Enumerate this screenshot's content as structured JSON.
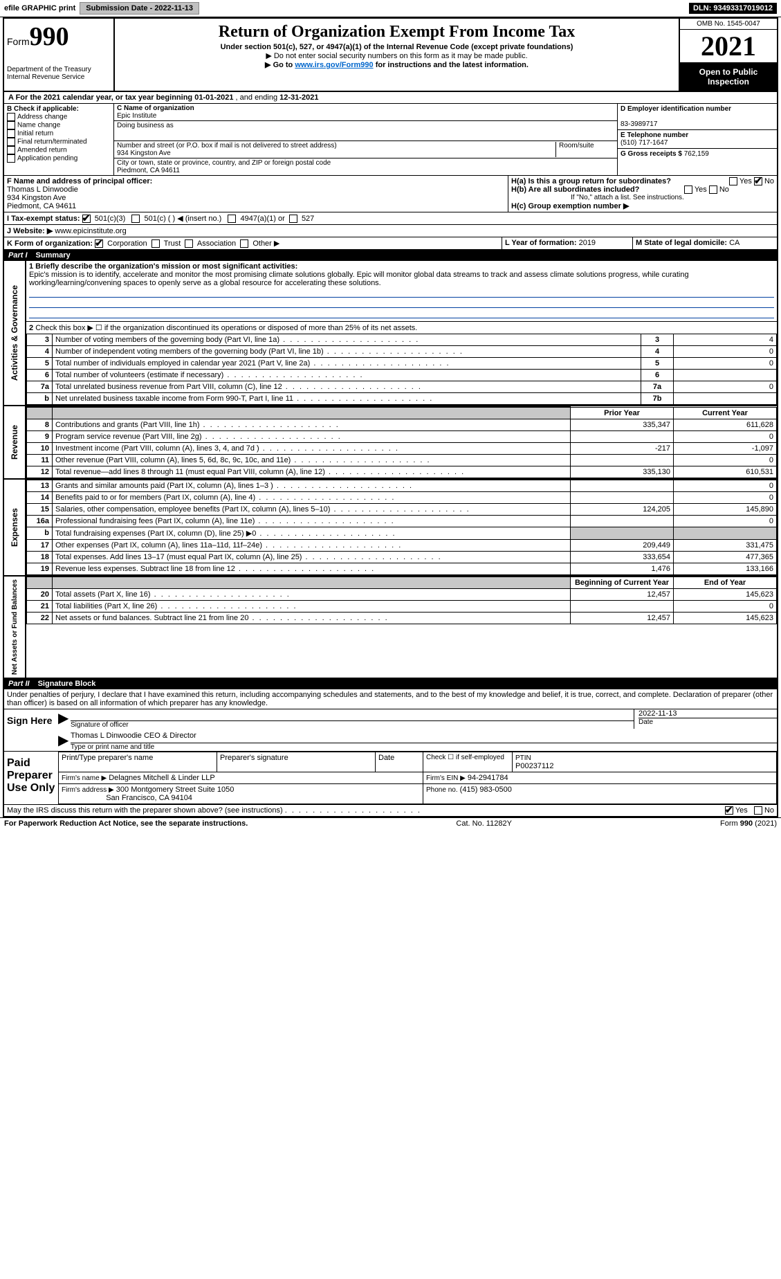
{
  "colors": {
    "black": "#000000",
    "white": "#ffffff",
    "grey_cell": "#c8c8c8",
    "link": "#0066cc",
    "underline_color": "#0040a0"
  },
  "topbar": {
    "efile_label": "efile GRAPHIC print",
    "submission_label": "Submission Date - 2022-11-13",
    "dln": "DLN: 93493317019012"
  },
  "header": {
    "form_label": "Form",
    "form_number": "990",
    "dept": "Department of the Treasury",
    "irs": "Internal Revenue Service",
    "title": "Return of Organization Exempt From Income Tax",
    "subtitle": "Under section 501(c), 527, or 4947(a)(1) of the Internal Revenue Code (except private foundations)",
    "note1": "▶ Do not enter social security numbers on this form as it may be made public.",
    "note2_pre": "▶ Go to ",
    "note2_link": "www.irs.gov/Form990",
    "note2_post": " for instructions and the latest information.",
    "omb": "OMB No. 1545-0047",
    "year": "2021",
    "open_pub": "Open to Public Inspection"
  },
  "lineA": {
    "text_pre": "A For the 2021 calendar year, or tax year beginning ",
    "begin": "01-01-2021",
    "mid": "   , and ending ",
    "end": "12-31-2021"
  },
  "boxB": {
    "label": "B Check if applicable:",
    "opts": [
      "Address change",
      "Name change",
      "Initial return",
      "Final return/terminated",
      "Amended return",
      "Application pending"
    ]
  },
  "boxC": {
    "name_label": "C Name of organization",
    "name": "Epic Institute",
    "dba_label": "Doing business as",
    "addr_label": "Number and street (or P.O. box if mail is not delivered to street address)",
    "room_label": "Room/suite",
    "addr": "934 Kingston Ave",
    "city_label": "City or town, state or province, country, and ZIP or foreign postal code",
    "city": "Piedmont, CA  94611"
  },
  "boxD": {
    "label": "D Employer identification number",
    "value": "83-3989717"
  },
  "boxE": {
    "label": "E Telephone number",
    "value": "(510) 717-1647"
  },
  "boxG": {
    "label": "G Gross receipts $",
    "value": "762,159"
  },
  "boxF": {
    "label": "F  Name and address of principal officer:",
    "name": "Thomas L Dinwoodie",
    "addr1": "934 Kingston Ave",
    "addr2": "Piedmont, CA  94611"
  },
  "boxH": {
    "a_label": "H(a)  Is this a group return for subordinates?",
    "a_yes": "Yes",
    "a_no": "No",
    "a_checked": "no",
    "b_label": "H(b)  Are all subordinates included?",
    "b_yes": "Yes",
    "b_no": "No",
    "b_note": "If \"No,\" attach a list. See instructions.",
    "c_label": "H(c)  Group exemption number ▶"
  },
  "boxI": {
    "label": "I   Tax-exempt status:",
    "o1": "501(c)(3)",
    "o2": "501(c) (  ) ◀ (insert no.)",
    "o3": "4947(a)(1) or",
    "o4": "527",
    "checked": "501c3"
  },
  "boxJ": {
    "label": "J   Website: ▶",
    "value": " www.epicinstitute.org"
  },
  "boxK": {
    "label": "K Form of organization:",
    "o1": "Corporation",
    "o2": "Trust",
    "o3": "Association",
    "o4": "Other ▶",
    "checked": "corp"
  },
  "boxL": {
    "label": "L Year of formation:",
    "value": "2019"
  },
  "boxM": {
    "label": "M State of legal domicile:",
    "value": "CA"
  },
  "part1": {
    "label": "Part I",
    "title": "Summary",
    "side_ag": "Activities & Governance",
    "side_rev": "Revenue",
    "side_exp": "Expenses",
    "side_net": "Net Assets or Fund Balances",
    "line1_label": "1 Briefly describe the organization's mission or most significant activities:",
    "mission": "Epic's mission is to identify, accelerate and monitor the most promising climate solutions globally. Epic will monitor global data streams to track and assess climate solutions progress, while curating working/learning/convening spaces to openly serve as a global resource for accelerating these solutions.",
    "line2": "Check this box ▶ ☐  if the organization discontinued its operations or disposed of more than 25% of its net assets.",
    "prior_hdr": "Prior Year",
    "current_hdr": "Current Year",
    "boy_hdr": "Beginning of Current Year",
    "eoy_hdr": "End of Year",
    "rows_ag": [
      {
        "n": "3",
        "t": "Number of voting members of the governing body (Part VI, line 1a)",
        "box": "3",
        "v": "4"
      },
      {
        "n": "4",
        "t": "Number of independent voting members of the governing body (Part VI, line 1b)",
        "box": "4",
        "v": "0"
      },
      {
        "n": "5",
        "t": "Total number of individuals employed in calendar year 2021 (Part V, line 2a)",
        "box": "5",
        "v": "0"
      },
      {
        "n": "6",
        "t": "Total number of volunteers (estimate if necessary)",
        "box": "6",
        "v": ""
      },
      {
        "n": "7a",
        "t": "Total unrelated business revenue from Part VIII, column (C), line 12",
        "box": "7a",
        "v": "0"
      },
      {
        "n": "b",
        "t": "Net unrelated business taxable income from Form 990-T, Part I, line 11",
        "box": "7b",
        "v": ""
      }
    ],
    "rows_rev": [
      {
        "n": "8",
        "t": "Contributions and grants (Part VIII, line 1h)",
        "py": "335,347",
        "cy": "611,628"
      },
      {
        "n": "9",
        "t": "Program service revenue (Part VIII, line 2g)",
        "py": "",
        "cy": "0"
      },
      {
        "n": "10",
        "t": "Investment income (Part VIII, column (A), lines 3, 4, and 7d )",
        "py": "-217",
        "cy": "-1,097"
      },
      {
        "n": "11",
        "t": "Other revenue (Part VIII, column (A), lines 5, 6d, 8c, 9c, 10c, and 11e)",
        "py": "",
        "cy": "0"
      },
      {
        "n": "12",
        "t": "Total revenue—add lines 8 through 11 (must equal Part VIII, column (A), line 12)",
        "py": "335,130",
        "cy": "610,531"
      }
    ],
    "rows_exp": [
      {
        "n": "13",
        "t": "Grants and similar amounts paid (Part IX, column (A), lines 1–3 )",
        "py": "",
        "cy": "0"
      },
      {
        "n": "14",
        "t": "Benefits paid to or for members (Part IX, column (A), line 4)",
        "py": "",
        "cy": "0"
      },
      {
        "n": "15",
        "t": "Salaries, other compensation, employee benefits (Part IX, column (A), lines 5–10)",
        "py": "124,205",
        "cy": "145,890"
      },
      {
        "n": "16a",
        "t": "Professional fundraising fees (Part IX, column (A), line 11e)",
        "py": "",
        "cy": "0"
      },
      {
        "n": "b",
        "t": "Total fundraising expenses (Part IX, column (D), line 25) ▶0",
        "py": "GREY",
        "cy": "GREY"
      },
      {
        "n": "17",
        "t": "Other expenses (Part IX, column (A), lines 11a–11d, 11f–24e)",
        "py": "209,449",
        "cy": "331,475"
      },
      {
        "n": "18",
        "t": "Total expenses. Add lines 13–17 (must equal Part IX, column (A), line 25)",
        "py": "333,654",
        "cy": "477,365"
      },
      {
        "n": "19",
        "t": "Revenue less expenses. Subtract line 18 from line 12",
        "py": "1,476",
        "cy": "133,166"
      }
    ],
    "rows_net": [
      {
        "n": "20",
        "t": "Total assets (Part X, line 16)",
        "py": "12,457",
        "cy": "145,623"
      },
      {
        "n": "21",
        "t": "Total liabilities (Part X, line 26)",
        "py": "",
        "cy": "0"
      },
      {
        "n": "22",
        "t": "Net assets or fund balances. Subtract line 21 from line 20",
        "py": "12,457",
        "cy": "145,623"
      }
    ]
  },
  "part2": {
    "label": "Part II",
    "title": "Signature Block",
    "penalty": "Under penalties of perjury, I declare that I have examined this return, including accompanying schedules and statements, and to the best of my knowledge and belief, it is true, correct, and complete. Declaration of preparer (other than officer) is based on all information of which preparer has any knowledge.",
    "sign_here": "Sign Here",
    "sig_officer": "Signature of officer",
    "sig_date": "Date",
    "sig_date_val": "2022-11-13",
    "officer_name": "Thomas L Dinwoodie  CEO & Director",
    "type_name": "Type or print name and title",
    "paid_label": "Paid Preparer Use Only",
    "prep_name_lbl": "Print/Type preparer's name",
    "prep_sig_lbl": "Preparer's signature",
    "date_lbl": "Date",
    "check_self": "Check ☐ if self-employed",
    "ptin_lbl": "PTIN",
    "ptin_val": "P00237112",
    "firm_name_lbl": "Firm's name   ▶",
    "firm_name": "Delagnes Mitchell & Linder LLP",
    "firm_ein_lbl": "Firm's EIN ▶",
    "firm_ein": "94-2941784",
    "firm_addr_lbl": "Firm's address ▶",
    "firm_addr1": "300 Montgomery Street Suite 1050",
    "firm_addr2": "San Francisco, CA  94104",
    "phone_lbl": "Phone no.",
    "phone": "(415) 983-0500",
    "may_irs": "May the IRS discuss this return with the preparer shown above? (see instructions)",
    "yes": "Yes",
    "no": "No",
    "may_checked": "yes"
  },
  "footer": {
    "pra": "For Paperwork Reduction Act Notice, see the separate instructions.",
    "cat": "Cat. No. 11282Y",
    "form": "Form 990 (2021)"
  }
}
